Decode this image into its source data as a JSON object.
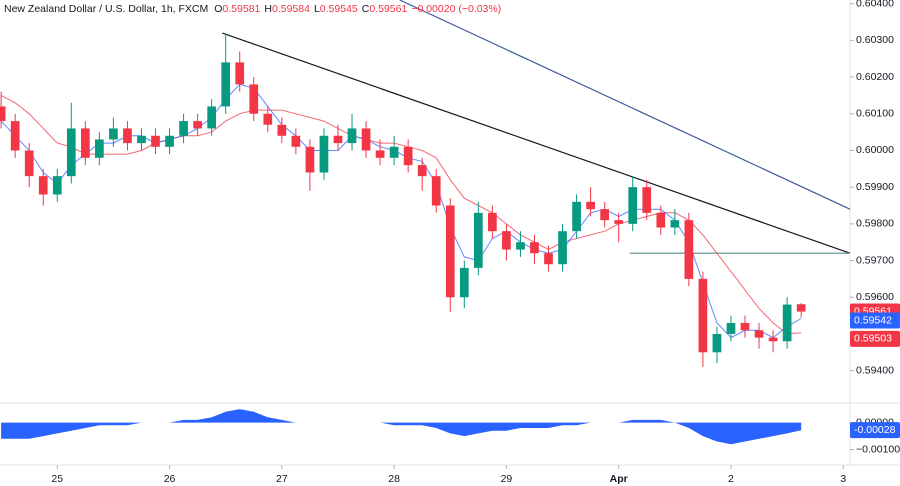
{
  "chart_data": {
    "type": "candlestick",
    "title": "New Zealand Dollar / U.S. Dollar, 1h, FXCM",
    "ohlc_labels": [
      "O",
      "H",
      "L",
      "C"
    ],
    "change": "−0.00020 (−0.03%)",
    "x": [
      -0.5,
      -0.375,
      -0.25,
      -0.125,
      0,
      0.125,
      0.25,
      0.375,
      0.5,
      0.625,
      0.75,
      0.875,
      1,
      1.125,
      1.25,
      1.375,
      1.5,
      1.625,
      1.75,
      1.875,
      2,
      2.125,
      2.25,
      2.375,
      2.5,
      2.625,
      2.75,
      2.875,
      3,
      3.125,
      3.25,
      3.375,
      3.5,
      3.625,
      3.75,
      3.875,
      4,
      4.125,
      4.25,
      4.375,
      4.5,
      4.625,
      4.75,
      4.875,
      5,
      5.125,
      5.25,
      5.375,
      5.5,
      5.625,
      5.75,
      5.875,
      6,
      6.125,
      6.25,
      6.375,
      6.5,
      6.625
    ],
    "open": [
      0.6012,
      0.6008,
      0.6,
      0.5993,
      0.5988,
      0.5993,
      0.6006,
      0.5998,
      0.6003,
      0.6006,
      0.6002,
      0.6004,
      0.6001,
      0.6004,
      0.6008,
      0.6006,
      0.6012,
      0.6024,
      0.6018,
      0.601,
      0.6007,
      0.6004,
      0.6001,
      0.5994,
      0.6004,
      0.6002,
      0.6006,
      0.6,
      0.5998,
      0.6001,
      0.5996,
      0.5993,
      0.5985,
      0.596,
      0.5968,
      0.5983,
      0.5978,
      0.5973,
      0.5975,
      0.5972,
      0.5969,
      0.5978,
      0.5986,
      0.5984,
      0.5981,
      0.598,
      0.599,
      0.5983,
      0.5979,
      0.5981,
      0.5965,
      0.5945,
      0.595,
      0.5953,
      0.5951,
      0.5949,
      0.5948,
      0.59581
    ],
    "high": [
      0.6016,
      0.601,
      0.6002,
      0.5995,
      0.5995,
      0.6013,
      0.6008,
      0.6005,
      0.6009,
      0.6008,
      0.6006,
      0.6006,
      0.6006,
      0.601,
      0.601,
      0.6014,
      0.6032,
      0.6027,
      0.602,
      0.6012,
      0.6009,
      0.6006,
      0.6003,
      0.6006,
      0.6007,
      0.601,
      0.6008,
      0.6003,
      0.6004,
      0.6003,
      0.5998,
      0.5995,
      0.5987,
      0.597,
      0.5986,
      0.5985,
      0.598,
      0.5978,
      0.5977,
      0.5974,
      0.598,
      0.5988,
      0.599,
      0.5986,
      0.5983,
      0.5993,
      0.5992,
      0.5985,
      0.5984,
      0.5983,
      0.5967,
      0.5952,
      0.5955,
      0.5955,
      0.5953,
      0.5951,
      0.596,
      0.59584
    ],
    "low": [
      0.6006,
      0.5998,
      0.599,
      0.5985,
      0.5986,
      0.5991,
      0.5996,
      0.5996,
      0.6001,
      0.6,
      0.6,
      0.5999,
      0.5999,
      0.6002,
      0.6004,
      0.6004,
      0.601,
      0.6016,
      0.6008,
      0.6005,
      0.6002,
      0.5999,
      0.5989,
      0.5992,
      0.6,
      0.6,
      0.5998,
      0.5996,
      0.5996,
      0.5994,
      0.5989,
      0.5983,
      0.5956,
      0.5957,
      0.5966,
      0.5976,
      0.597,
      0.5971,
      0.5969,
      0.5967,
      0.5967,
      0.5976,
      0.5982,
      0.5979,
      0.5975,
      0.5978,
      0.5981,
      0.5977,
      0.5977,
      0.5963,
      0.5941,
      0.5942,
      0.5948,
      0.5949,
      0.5946,
      0.5945,
      0.5946,
      0.59545
    ],
    "close": [
      0.6008,
      0.6,
      0.5993,
      0.5988,
      0.5993,
      0.6006,
      0.5998,
      0.6003,
      0.6006,
      0.6002,
      0.6004,
      0.6001,
      0.6004,
      0.6008,
      0.6006,
      0.6012,
      0.6024,
      0.6018,
      0.601,
      0.6007,
      0.6004,
      0.6001,
      0.5994,
      0.6004,
      0.6002,
      0.6006,
      0.6,
      0.5998,
      0.6001,
      0.5996,
      0.5993,
      0.5985,
      0.596,
      0.5968,
      0.5983,
      0.5978,
      0.5973,
      0.5975,
      0.5972,
      0.5969,
      0.5978,
      0.5986,
      0.5984,
      0.5981,
      0.598,
      0.599,
      0.5983,
      0.5979,
      0.5981,
      0.5965,
      0.5945,
      0.595,
      0.5953,
      0.5951,
      0.5949,
      0.5948,
      0.5958,
      0.59561
    ],
    "up_color": "#089981",
    "down_color": "#f23645",
    "overlays": [
      {
        "color": "#f23645",
        "values": [
          0.6015,
          0.6013,
          0.601,
          0.6006,
          0.6002,
          0.6001,
          0.5999,
          0.5999,
          0.5999,
          0.5999,
          0.6,
          0.6002,
          0.6003,
          0.6004,
          0.6004,
          0.6005,
          0.6008,
          0.601,
          0.6011,
          0.6011,
          0.6011,
          0.601,
          0.6009,
          0.6008,
          0.6006,
          0.6004,
          0.6003,
          0.6002,
          0.6002,
          0.6001,
          0.6,
          0.5998,
          0.5992,
          0.5987,
          0.5985,
          0.5983,
          0.598,
          0.5977,
          0.5975,
          0.5973,
          0.5975,
          0.5976,
          0.5977,
          0.5978,
          0.598,
          0.5981,
          0.5982,
          0.5983,
          0.5983,
          0.5981,
          0.5977,
          0.5972,
          0.5967,
          0.5962,
          0.5957,
          0.5953,
          0.595,
          0.59503
        ]
      },
      {
        "color": "#2962ff",
        "values": [
          0.6008,
          0.6004,
          0.6,
          0.5994,
          0.5991,
          0.5996,
          0.5999,
          0.6002,
          0.6002,
          0.6004,
          0.6004,
          0.6002,
          0.6003,
          0.6004,
          0.6006,
          0.6009,
          0.6014,
          0.6018,
          0.6017,
          0.6012,
          0.6007,
          0.6004,
          0.6,
          0.6,
          0.6,
          0.6004,
          0.6003,
          0.6001,
          0.6,
          0.5998,
          0.5997,
          0.5991,
          0.5979,
          0.5971,
          0.597,
          0.5976,
          0.5978,
          0.5975,
          0.5973,
          0.5972,
          0.5973,
          0.5978,
          0.5983,
          0.5984,
          0.5982,
          0.5984,
          0.5984,
          0.5984,
          0.5981,
          0.5975,
          0.5964,
          0.5953,
          0.5949,
          0.5951,
          0.5951,
          0.5949,
          0.5952,
          0.59542
        ]
      }
    ],
    "trendlines": [
      {
        "color": "#131722",
        "x": [
          1.47,
          7.06
        ],
        "y": [
          0.6032,
          0.5972
        ]
      },
      {
        "color": "#3d5a99",
        "x": [
          3.05,
          7.06
        ],
        "y": [
          0.6041,
          0.5984
        ]
      },
      {
        "color": "#5b8a8a",
        "x": [
          5.1,
          7.06
        ],
        "y": [
          0.5972,
          0.5972
        ]
      }
    ],
    "xlim": [
      -0.51,
      7.06
    ],
    "ylim": [
      0.5932,
      0.6041
    ],
    "xticks": [
      {
        "value": 0,
        "label": "25"
      },
      {
        "value": 1,
        "label": "26"
      },
      {
        "value": 2,
        "label": "27"
      },
      {
        "value": 3,
        "label": "28"
      },
      {
        "value": 4,
        "label": "29"
      },
      {
        "value": 5,
        "label": "Apr"
      },
      {
        "value": 6,
        "label": "2"
      },
      {
        "value": 7,
        "label": "3"
      }
    ],
    "yticks": [
      {
        "value": 0.604,
        "label": "0.60400"
      },
      {
        "value": 0.603,
        "label": "0.60300"
      },
      {
        "value": 0.602,
        "label": "0.60200"
      },
      {
        "value": 0.601,
        "label": "0.60100"
      },
      {
        "value": 0.6,
        "label": "0.60000"
      },
      {
        "value": 0.599,
        "label": "0.59900"
      },
      {
        "value": 0.598,
        "label": "0.59800"
      },
      {
        "value": 0.597,
        "label": "0.59700"
      },
      {
        "value": 0.596,
        "label": "0.59600"
      },
      {
        "value": 0.594,
        "label": "0.59400"
      }
    ],
    "oscillator": {
      "type": "area",
      "color": "#2962ff",
      "values": [
        -0.0006,
        -0.0006,
        -0.0006,
        -0.0005,
        -0.0004,
        -0.0003,
        -0.0002,
        -0.0001,
        -0.0001,
        -0.0001,
        0,
        0,
        0,
        0.0001,
        0.0001,
        0.0002,
        0.0004,
        0.0005,
        0.0004,
        0.0002,
        0.0001,
        0,
        0,
        0,
        0,
        0,
        0,
        0,
        -0.0001,
        -0.0001,
        -0.0001,
        -0.0002,
        -0.0004,
        -0.0005,
        -0.0004,
        -0.0003,
        -0.0003,
        -0.0002,
        -0.0002,
        -0.0002,
        -0.0001,
        -0.0001,
        0,
        0,
        0,
        0.0001,
        0.0001,
        0.0001,
        0,
        -0.0002,
        -0.0005,
        -0.0007,
        -0.0008,
        -0.0007,
        -0.0006,
        -0.0005,
        -0.0004,
        -0.00028
      ],
      "ylim": [
        -0.00146,
        0.000615
      ],
      "yticks": [
        {
          "value": 0,
          "label": "0.00000"
        },
        {
          "value": -0.001,
          "label": "−0.00100"
        }
      ]
    }
  }
}
